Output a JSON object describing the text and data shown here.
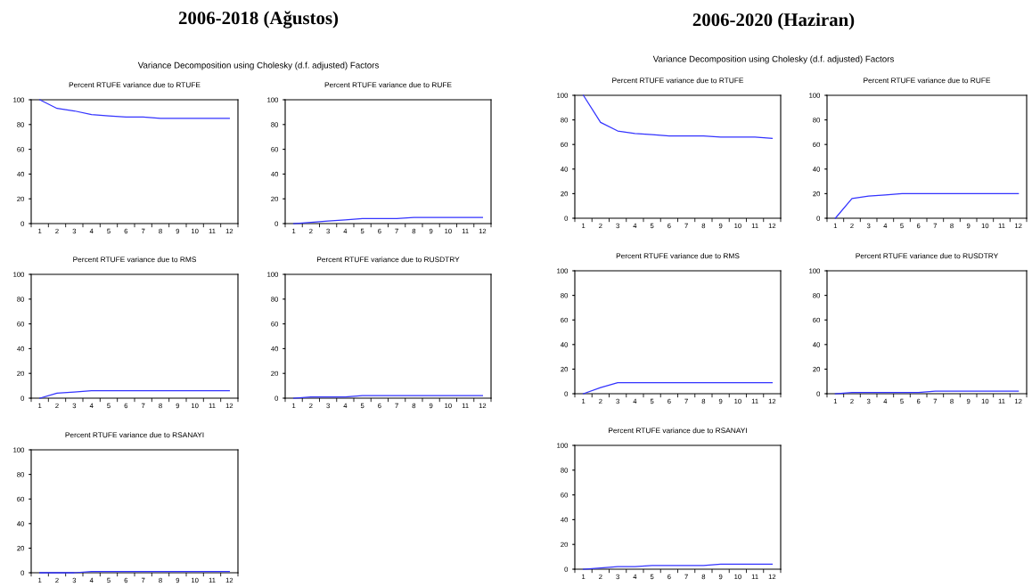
{
  "chart_data": [
    {
      "type": "other",
      "title": "2006-2018 (Ağustos)",
      "subtitle": "Variance Decomposition using Cholesky (d.f. adjusted) Factors"
    },
    {
      "type": "line",
      "title": "Percent RTUFE variance due to RTUFE",
      "categories": [
        "1",
        "2",
        "3",
        "4",
        "5",
        "6",
        "7",
        "8",
        "9",
        "10",
        "11",
        "12"
      ],
      "values": [
        100,
        93,
        91,
        88,
        87,
        86,
        86,
        85,
        85,
        85,
        85,
        85
      ],
      "color": "#3333ff",
      "ylim": [
        0,
        100
      ],
      "yticks": [
        0,
        20,
        40,
        60,
        80,
        100
      ]
    },
    {
      "type": "line",
      "title": "Percent RTUFE variance due to RUFE",
      "categories": [
        "1",
        "2",
        "3",
        "4",
        "5",
        "6",
        "7",
        "8",
        "9",
        "10",
        "11",
        "12"
      ],
      "values": [
        0,
        1,
        2,
        3,
        4,
        4,
        4,
        5,
        5,
        5,
        5,
        5
      ],
      "color": "#3333ff",
      "ylim": [
        0,
        100
      ],
      "yticks": [
        0,
        20,
        40,
        60,
        80,
        100
      ]
    },
    {
      "type": "line",
      "title": "Percent RTUFE variance due to RMS",
      "categories": [
        "1",
        "2",
        "3",
        "4",
        "5",
        "6",
        "7",
        "8",
        "9",
        "10",
        "11",
        "12"
      ],
      "values": [
        0,
        4,
        5,
        6,
        6,
        6,
        6,
        6,
        6,
        6,
        6,
        6
      ],
      "color": "#3333ff",
      "ylim": [
        0,
        100
      ],
      "yticks": [
        0,
        20,
        40,
        60,
        80,
        100
      ]
    },
    {
      "type": "line",
      "title": "Percent RTUFE variance due to RUSDTRY",
      "categories": [
        "1",
        "2",
        "3",
        "4",
        "5",
        "6",
        "7",
        "8",
        "9",
        "10",
        "11",
        "12"
      ],
      "values": [
        0,
        1,
        1,
        1,
        2,
        2,
        2,
        2,
        2,
        2,
        2,
        2
      ],
      "color": "#3333ff",
      "ylim": [
        0,
        100
      ],
      "yticks": [
        0,
        20,
        40,
        60,
        80,
        100
      ]
    },
    {
      "type": "line",
      "title": "Percent RTUFE variance due to RSANAYI",
      "categories": [
        "1",
        "2",
        "3",
        "4",
        "5",
        "6",
        "7",
        "8",
        "9",
        "10",
        "11",
        "12"
      ],
      "values": [
        0,
        0,
        0,
        1,
        1,
        1,
        1,
        1,
        1,
        1,
        1,
        1
      ],
      "color": "#3333ff",
      "ylim": [
        0,
        100
      ],
      "yticks": [
        0,
        20,
        40,
        60,
        80,
        100
      ]
    },
    {
      "type": "other",
      "title": "2006-2020 (Haziran)",
      "subtitle": "Variance Decomposition using Cholesky (d.f. adjusted) Factors"
    },
    {
      "type": "line",
      "title": "Percent RTUFE variance due to RTUFE",
      "categories": [
        "1",
        "2",
        "3",
        "4",
        "5",
        "6",
        "7",
        "8",
        "9",
        "10",
        "11",
        "12"
      ],
      "values": [
        100,
        78,
        71,
        69,
        68,
        67,
        67,
        67,
        66,
        66,
        66,
        65
      ],
      "color": "#3333ff",
      "ylim": [
        0,
        100
      ],
      "yticks": [
        0,
        20,
        40,
        60,
        80,
        100
      ]
    },
    {
      "type": "line",
      "title": "Percent RTUFE variance due to RUFE",
      "categories": [
        "1",
        "2",
        "3",
        "4",
        "5",
        "6",
        "7",
        "8",
        "9",
        "10",
        "11",
        "12"
      ],
      "values": [
        0,
        16,
        18,
        19,
        20,
        20,
        20,
        20,
        20,
        20,
        20,
        20
      ],
      "color": "#3333ff",
      "ylim": [
        0,
        100
      ],
      "yticks": [
        0,
        20,
        40,
        60,
        80,
        100
      ]
    },
    {
      "type": "line",
      "title": "Percent RTUFE variance due to RMS",
      "categories": [
        "1",
        "2",
        "3",
        "4",
        "5",
        "6",
        "7",
        "8",
        "9",
        "10",
        "11",
        "12"
      ],
      "values": [
        0,
        5,
        9,
        9,
        9,
        9,
        9,
        9,
        9,
        9,
        9,
        9
      ],
      "color": "#3333ff",
      "ylim": [
        0,
        100
      ],
      "yticks": [
        0,
        20,
        40,
        60,
        80,
        100
      ]
    },
    {
      "type": "line",
      "title": "Percent RTUFE variance due to RUSDTRY",
      "categories": [
        "1",
        "2",
        "3",
        "4",
        "5",
        "6",
        "7",
        "8",
        "9",
        "10",
        "11",
        "12"
      ],
      "values": [
        0,
        1,
        1,
        1,
        1,
        1,
        2,
        2,
        2,
        2,
        2,
        2
      ],
      "color": "#3333ff",
      "ylim": [
        0,
        100
      ],
      "yticks": [
        0,
        20,
        40,
        60,
        80,
        100
      ]
    },
    {
      "type": "line",
      "title": "Percent RTUFE variance due to RSANAYI",
      "categories": [
        "1",
        "2",
        "3",
        "4",
        "5",
        "6",
        "7",
        "8",
        "9",
        "10",
        "11",
        "12"
      ],
      "values": [
        0,
        1,
        2,
        2,
        3,
        3,
        3,
        3,
        4,
        4,
        4,
        4
      ],
      "color": "#3333ff",
      "ylim": [
        0,
        100
      ],
      "yticks": [
        0,
        20,
        40,
        60,
        80,
        100
      ]
    }
  ]
}
